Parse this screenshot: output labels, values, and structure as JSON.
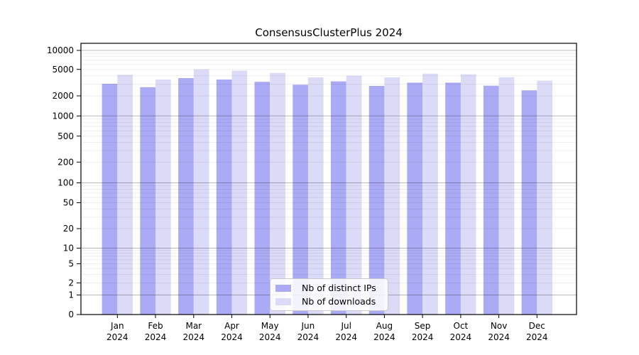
{
  "chart_data": {
    "type": "bar",
    "title": "ConsensusClusterPlus 2024",
    "categories": [
      "Jan",
      "Feb",
      "Mar",
      "Apr",
      "May",
      "Jun",
      "Jul",
      "Aug",
      "Sep",
      "Oct",
      "Nov",
      "Dec"
    ],
    "category_sublabel": "2024",
    "series": [
      {
        "name": "Nb of distinct IPs",
        "color": "#ababf5",
        "values": [
          3040,
          2700,
          3700,
          3520,
          3250,
          2940,
          3300,
          2820,
          3160,
          3160,
          2840,
          2420
        ]
      },
      {
        "name": "Nb of downloads",
        "color": "#dbdbf8",
        "values": [
          4150,
          3520,
          5000,
          4800,
          4420,
          3790,
          4010,
          3790,
          4310,
          4210,
          3820,
          3380
        ]
      }
    ],
    "yscale": "log",
    "yticks": [
      10000,
      5000,
      2000,
      1000,
      500,
      200,
      100,
      50,
      20,
      10,
      5,
      2,
      1,
      0
    ],
    "ylim": [
      0,
      10000
    ],
    "xlabel": "",
    "ylabel": "",
    "grid": true,
    "legend_position": "bottom-center",
    "colors": {
      "bar_dark": "#ababf5",
      "bar_light": "#dbdbf8",
      "grid_minor": "rgba(0,0,0,0.07)",
      "grid_major": "rgba(0,0,0,0.28)",
      "frame": "#000000"
    }
  }
}
